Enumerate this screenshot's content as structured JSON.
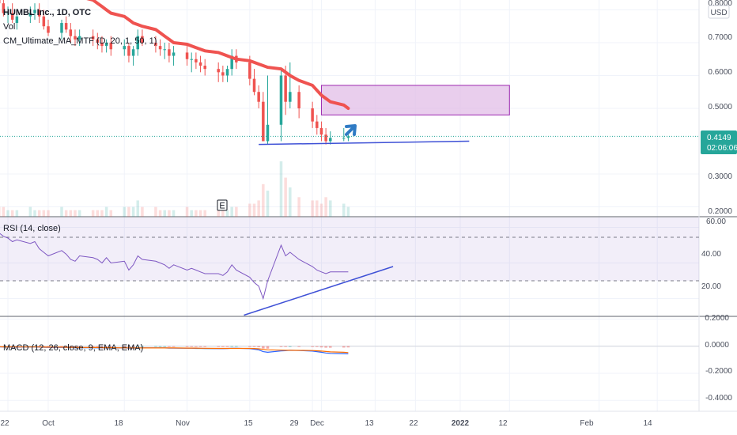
{
  "header": {
    "symbol_line": "HUMBL Inc., 1D, OTC",
    "vol_label": "Vol",
    "indicator_label": "CM_Ultimate_MA_MTF (D, 20, 1, 50, 1)",
    "currency": "USD"
  },
  "price_axis": {
    "ticks": [
      "0.8000",
      "0.7000",
      "0.6000",
      "0.5000",
      "0.3000",
      "0.2000"
    ],
    "last_price": "0.4149",
    "countdown": "02:06:06"
  },
  "rsi_panel": {
    "label": "RSI (14, close)",
    "ticks": [
      "60.00",
      "40.00",
      "20.00"
    ]
  },
  "macd_panel": {
    "label": "MACD (12, 26, close, 9, EMA, EMA)",
    "ticks": [
      "0.2000",
      "0.0000",
      "-0.2000",
      "-0.4000"
    ]
  },
  "time_axis": {
    "ticks": [
      "22",
      "Oct",
      "18",
      "Nov",
      "15",
      "29",
      "Dec",
      "13",
      "22",
      "2022",
      "12",
      "Feb",
      "14"
    ]
  },
  "earnings_marker": "E",
  "colors": {
    "up": "#26a69a",
    "down": "#ef5350",
    "ma": "#ef5350",
    "rsi": "#7e57c2",
    "trendline": "#3f51d6",
    "zone_fill": "#e1bee7",
    "zone_border": "#9c27b0",
    "arrow": "#2f7bc4",
    "macd": "#2962ff",
    "signal": "#ff6d00"
  },
  "chart_data": {
    "type": "candlestick",
    "x": [
      "2021-09-20",
      "2021-09-21",
      "2021-09-22",
      "2021-09-23",
      "2021-09-24",
      "2021-09-27",
      "2021-09-28",
      "2021-09-29",
      "2021-09-30",
      "2021-10-01",
      "2021-10-04",
      "2021-10-05",
      "2021-10-06",
      "2021-10-07",
      "2021-10-08",
      "2021-10-11",
      "2021-10-12",
      "2021-10-13",
      "2021-10-14",
      "2021-10-15",
      "2021-10-18",
      "2021-10-19",
      "2021-10-20",
      "2021-10-21",
      "2021-10-22",
      "2021-10-25",
      "2021-10-26",
      "2021-10-27",
      "2021-10-28",
      "2021-10-29",
      "2021-11-01",
      "2021-11-02",
      "2021-11-03",
      "2021-11-04",
      "2021-11-05",
      "2021-11-08",
      "2021-11-09",
      "2021-11-10",
      "2021-11-11",
      "2021-11-12",
      "2021-11-15",
      "2021-11-16",
      "2021-11-17",
      "2021-11-18",
      "2021-11-19",
      "2021-11-22",
      "2021-11-23",
      "2021-11-24",
      "2021-11-26",
      "2021-11-29",
      "2021-11-30",
      "2021-12-01",
      "2021-12-02",
      "2021-12-03",
      "2021-12-06",
      "2021-12-07"
    ],
    "open": [
      0.83,
      0.82,
      0.79,
      0.79,
      0.76,
      0.78,
      0.79,
      0.8,
      0.78,
      0.75,
      0.73,
      0.76,
      0.74,
      0.72,
      0.71,
      0.72,
      0.71,
      0.7,
      0.69,
      0.7,
      0.68,
      0.69,
      0.66,
      0.68,
      0.72,
      0.7,
      0.69,
      0.68,
      0.68,
      0.66,
      0.67,
      0.65,
      0.65,
      0.64,
      0.63,
      0.62,
      0.61,
      0.6,
      0.62,
      0.66,
      0.64,
      0.59,
      0.55,
      0.52,
      0.4,
      0.45,
      0.6,
      0.52,
      0.55,
      0.5,
      0.46,
      0.44,
      0.42,
      0.4,
      0.41,
      0.41
    ],
    "high": [
      0.85,
      0.84,
      0.81,
      0.82,
      0.8,
      0.81,
      0.82,
      0.82,
      0.8,
      0.77,
      0.77,
      0.78,
      0.76,
      0.74,
      0.74,
      0.74,
      0.73,
      0.72,
      0.71,
      0.72,
      0.71,
      0.7,
      0.69,
      0.74,
      0.74,
      0.72,
      0.71,
      0.7,
      0.7,
      0.69,
      0.69,
      0.67,
      0.67,
      0.66,
      0.65,
      0.64,
      0.63,
      0.63,
      0.68,
      0.68,
      0.66,
      0.62,
      0.57,
      0.55,
      0.6,
      0.62,
      0.63,
      0.64,
      0.57,
      0.52,
      0.48,
      0.46,
      0.44,
      0.43,
      0.44,
      0.43
    ],
    "low": [
      0.8,
      0.78,
      0.76,
      0.76,
      0.74,
      0.76,
      0.77,
      0.76,
      0.74,
      0.72,
      0.71,
      0.73,
      0.7,
      0.69,
      0.69,
      0.69,
      0.68,
      0.67,
      0.67,
      0.66,
      0.66,
      0.64,
      0.63,
      0.66,
      0.69,
      0.67,
      0.66,
      0.65,
      0.64,
      0.63,
      0.63,
      0.61,
      0.62,
      0.61,
      0.6,
      0.58,
      0.58,
      0.58,
      0.6,
      0.62,
      0.57,
      0.54,
      0.5,
      0.4,
      0.39,
      0.4,
      0.48,
      0.5,
      0.47,
      0.44,
      0.42,
      0.4,
      0.39,
      0.39,
      0.4,
      0.4
    ],
    "close": [
      0.82,
      0.79,
      0.79,
      0.77,
      0.78,
      0.79,
      0.8,
      0.78,
      0.75,
      0.73,
      0.76,
      0.74,
      0.72,
      0.71,
      0.72,
      0.71,
      0.7,
      0.69,
      0.7,
      0.68,
      0.69,
      0.66,
      0.68,
      0.72,
      0.7,
      0.69,
      0.68,
      0.68,
      0.66,
      0.67,
      0.65,
      0.65,
      0.64,
      0.63,
      0.62,
      0.61,
      0.6,
      0.62,
      0.66,
      0.64,
      0.59,
      0.55,
      0.52,
      0.4,
      0.45,
      0.6,
      0.52,
      0.55,
      0.5,
      0.46,
      0.44,
      0.42,
      0.4,
      0.41,
      0.41,
      0.4149
    ],
    "volume": [
      3,
      3,
      2,
      2,
      2,
      3,
      2,
      2,
      2,
      2,
      3,
      2,
      2,
      2,
      2,
      2,
      2,
      2,
      3,
      2,
      3,
      3,
      3,
      5,
      3,
      3,
      2,
      2,
      2,
      2,
      3,
      2,
      2,
      2,
      2,
      2,
      3,
      2,
      3,
      3,
      4,
      4,
      5,
      10,
      8,
      17,
      12,
      9,
      6,
      5,
      5,
      4,
      6,
      5,
      4,
      3
    ],
    "ma20": [
      0.98,
      0.97,
      0.96,
      0.95,
      0.94,
      0.93,
      0.92,
      0.91,
      0.9,
      0.89,
      0.88,
      0.87,
      0.86,
      0.85,
      0.84,
      0.83,
      0.82,
      0.81,
      0.8,
      0.79,
      0.78,
      0.77,
      0.76,
      0.755,
      0.75,
      0.74,
      0.73,
      0.72,
      0.71,
      0.7,
      0.695,
      0.69,
      0.685,
      0.68,
      0.675,
      0.67,
      0.665,
      0.66,
      0.655,
      0.65,
      0.645,
      0.64,
      0.635,
      0.63,
      0.625,
      0.62,
      0.61,
      0.6,
      0.585,
      0.57,
      0.555,
      0.54,
      0.53,
      0.52,
      0.51,
      0.5
    ],
    "ylim": [
      0.17,
      0.83
    ],
    "rsi": [
      57,
      55,
      54,
      52,
      53,
      51,
      52,
      48,
      46,
      44,
      47,
      45,
      42,
      41,
      44,
      43,
      42,
      40,
      43,
      40,
      41,
      36,
      39,
      44,
      42,
      41,
      40,
      39,
      37,
      39,
      36,
      37,
      36,
      35,
      34,
      34,
      33,
      35,
      39,
      36,
      32,
      29,
      27,
      20,
      30,
      50,
      44,
      46,
      42,
      38,
      36,
      35,
      34,
      35,
      35,
      35
    ],
    "rsi_ylim": [
      10,
      66
    ],
    "rsi_levels": [
      70,
      30
    ],
    "macd": [
      -0.005,
      -0.006,
      -0.006,
      -0.007,
      -0.007,
      -0.006,
      -0.006,
      -0.007,
      -0.008,
      -0.009,
      -0.008,
      -0.009,
      -0.01,
      -0.011,
      -0.011,
      -0.011,
      -0.012,
      -0.012,
      -0.012,
      -0.013,
      -0.013,
      -0.014,
      -0.014,
      -0.012,
      -0.012,
      -0.012,
      -0.013,
      -0.013,
      -0.014,
      -0.014,
      -0.015,
      -0.015,
      -0.016,
      -0.016,
      -0.017,
      -0.018,
      -0.018,
      -0.017,
      -0.015,
      -0.015,
      -0.018,
      -0.022,
      -0.027,
      -0.04,
      -0.045,
      -0.035,
      -0.033,
      -0.03,
      -0.032,
      -0.036,
      -0.04,
      -0.045,
      -0.05,
      -0.053,
      -0.055,
      -0.056
    ],
    "signal": [
      -0.004,
      -0.005,
      -0.005,
      -0.006,
      -0.006,
      -0.006,
      -0.006,
      -0.006,
      -0.007,
      -0.007,
      -0.007,
      -0.008,
      -0.008,
      -0.009,
      -0.009,
      -0.01,
      -0.01,
      -0.011,
      -0.011,
      -0.011,
      -0.012,
      -0.012,
      -0.013,
      -0.013,
      -0.013,
      -0.013,
      -0.013,
      -0.013,
      -0.013,
      -0.013,
      -0.014,
      -0.014,
      -0.014,
      -0.015,
      -0.015,
      -0.016,
      -0.016,
      -0.016,
      -0.016,
      -0.016,
      -0.016,
      -0.017,
      -0.019,
      -0.023,
      -0.027,
      -0.029,
      -0.03,
      -0.03,
      -0.031,
      -0.032,
      -0.034,
      -0.036,
      -0.039,
      -0.042,
      -0.045,
      -0.047
    ],
    "macd_ylim": [
      -0.48,
      0.22
    ],
    "support_line": {
      "from": [
        "2021-11-17",
        0.39
      ],
      "to": [
        "2022-01-03",
        0.4
      ]
    },
    "rsi_trendline": {
      "from": [
        "2021-11-19",
        16
      ],
      "to": [
        "2021-12-17",
        38
      ]
    },
    "target_zone": {
      "from": "2021-12-01",
      "to": "2022-01-12",
      "low": 0.48,
      "high": 0.57
    }
  }
}
